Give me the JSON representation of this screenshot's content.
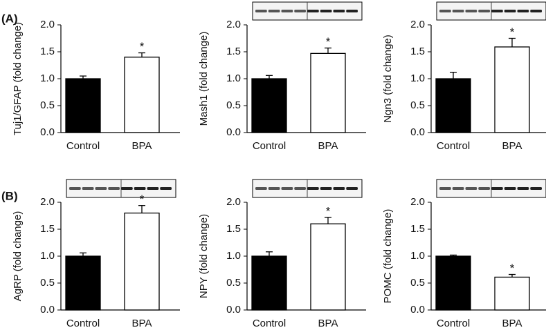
{
  "chart_data": [
    {
      "type": "bar",
      "panel_label": "(A)",
      "ylabel": "Tuj1/GFAP (fold change)",
      "categories": [
        "Control",
        "BPA"
      ],
      "values": [
        1.0,
        1.4
      ],
      "errors": [
        0.05,
        0.08
      ],
      "significance": [
        null,
        "*"
      ],
      "colors": [
        "#000000",
        "#ffffff"
      ],
      "blot": false,
      "ylim": [
        0,
        2
      ],
      "yticks": [
        {
          "value": 0,
          "label": "0.0"
        },
        {
          "value": 0.5,
          "label": "0.5"
        },
        {
          "value": 1,
          "label": "1.0"
        },
        {
          "value": 1.5,
          "label": "1.5"
        },
        {
          "value": 2,
          "label": "2.0"
        }
      ]
    },
    {
      "type": "bar",
      "ylabel": "Mash1 (fold change)",
      "categories": [
        "Control",
        "BPA"
      ],
      "values": [
        1.0,
        1.47
      ],
      "errors": [
        0.06,
        0.1
      ],
      "significance": [
        null,
        "*"
      ],
      "colors": [
        "#000000",
        "#ffffff"
      ],
      "blot": true,
      "ylim": [
        0,
        2
      ],
      "yticks": [
        {
          "value": 0,
          "label": "0.0"
        },
        {
          "value": 0.5,
          "label": "0.5"
        },
        {
          "value": 1,
          "label": "1.0"
        },
        {
          "value": 1.5,
          "label": "1.5"
        },
        {
          "value": 2,
          "label": "2.0"
        }
      ]
    },
    {
      "type": "bar",
      "ylabel": "Ngn3 (fold change)",
      "categories": [
        "Control",
        "BPA"
      ],
      "values": [
        1.0,
        1.59
      ],
      "errors": [
        0.12,
        0.16
      ],
      "significance": [
        null,
        "*"
      ],
      "colors": [
        "#000000",
        "#ffffff"
      ],
      "blot": true,
      "ylim": [
        0,
        2
      ],
      "yticks": [
        {
          "value": 0,
          "label": "0.0"
        },
        {
          "value": 0.5,
          "label": "0.5"
        },
        {
          "value": 1,
          "label": "1.0"
        },
        {
          "value": 1.5,
          "label": "1.5"
        },
        {
          "value": 2,
          "label": "2.0"
        }
      ]
    },
    {
      "type": "bar",
      "panel_label": "(B)",
      "ylabel": "AgRP (fold change)",
      "categories": [
        "Control",
        "BPA"
      ],
      "values": [
        1.0,
        1.8
      ],
      "errors": [
        0.06,
        0.14
      ],
      "significance": [
        null,
        "*"
      ],
      "colors": [
        "#000000",
        "#ffffff"
      ],
      "blot": true,
      "ylim": [
        0,
        2
      ],
      "yticks": [
        {
          "value": 0,
          "label": "0.0"
        },
        {
          "value": 0.5,
          "label": "0.5"
        },
        {
          "value": 1,
          "label": "1.0"
        },
        {
          "value": 1.5,
          "label": "1.5"
        },
        {
          "value": 2,
          "label": "2.0"
        }
      ]
    },
    {
      "type": "bar",
      "ylabel": "NPY (fold change)",
      "categories": [
        "Control",
        "BPA"
      ],
      "values": [
        1.0,
        1.6
      ],
      "errors": [
        0.08,
        0.12
      ],
      "significance": [
        null,
        "*"
      ],
      "colors": [
        "#000000",
        "#ffffff"
      ],
      "blot": true,
      "ylim": [
        0,
        2
      ],
      "yticks": [
        {
          "value": 0,
          "label": "0.0"
        },
        {
          "value": 0.5,
          "label": "0.5"
        },
        {
          "value": 1,
          "label": "1.0"
        },
        {
          "value": 1.5,
          "label": "1.5"
        },
        {
          "value": 2,
          "label": "2.0"
        }
      ]
    },
    {
      "type": "bar",
      "ylabel": "POMC (fold change)",
      "categories": [
        "Control",
        "BPA"
      ],
      "values": [
        1.0,
        0.61
      ],
      "errors": [
        0.02,
        0.05
      ],
      "significance": [
        null,
        "*"
      ],
      "colors": [
        "#000000",
        "#ffffff"
      ],
      "blot": true,
      "ylim": [
        0,
        2
      ],
      "yticks": [
        {
          "value": 0,
          "label": "0.0"
        },
        {
          "value": 0.5,
          "label": "0.5"
        },
        {
          "value": 1,
          "label": "1.0"
        },
        {
          "value": 1.5,
          "label": "1.5"
        },
        {
          "value": 2,
          "label": "2.0"
        }
      ]
    }
  ]
}
